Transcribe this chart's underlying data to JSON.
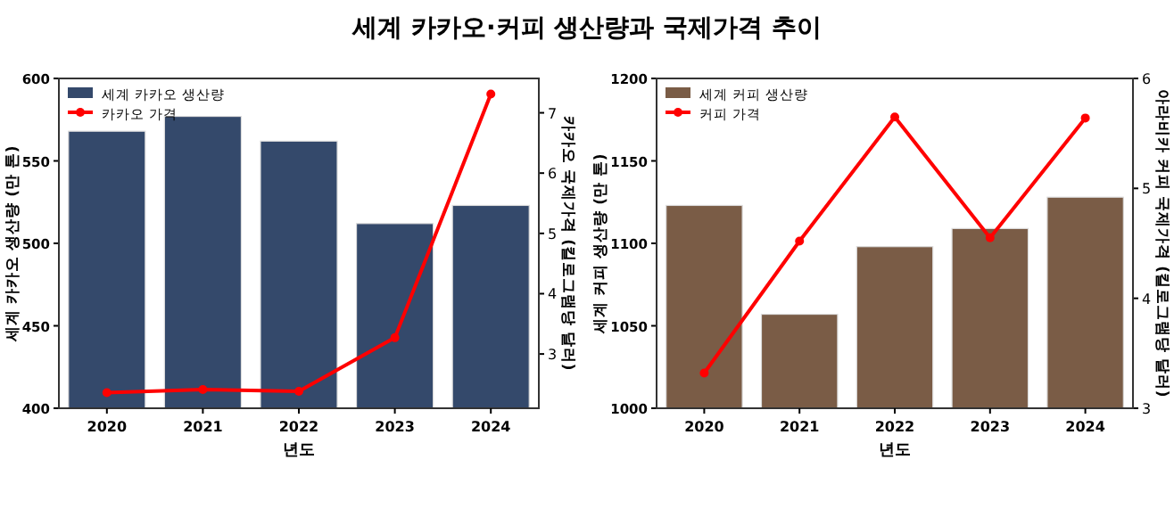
{
  "chart_data": [
    {
      "type": "bar",
      "title": "세계 카카오·커피 생산량과 국제가격 추이",
      "categories": [
        "2020",
        "2021",
        "2022",
        "2023",
        "2024"
      ],
      "xlabel": "년도",
      "ylabel": "세계 카카오 생산량 (만 톤)",
      "y2label": "카카오 국제가격 (킬로그램당 달러)",
      "ylim": [
        400,
        600
      ],
      "yticks": [
        400,
        450,
        500,
        550,
        600
      ],
      "y2lim": [
        2.1,
        7.57
      ],
      "y2ticks": [
        3,
        4,
        5,
        6,
        7
      ],
      "legend": "top left",
      "marker": "circle",
      "series": [
        {
          "name": "세계 카카오 생산량",
          "color": "#34496b",
          "values": [
            568,
            577,
            562,
            512,
            523
          ]
        },
        {
          "name": "카카오 가격",
          "type": "line",
          "axis": "y2",
          "color": "#ff0000",
          "values": [
            2.36,
            2.41,
            2.38,
            3.27,
            7.31
          ]
        }
      ]
    },
    {
      "type": "bar",
      "categories": [
        "2020",
        "2021",
        "2022",
        "2023",
        "2024"
      ],
      "xlabel": "년도",
      "ylabel": "세계 커피 생산량 (만 톤)",
      "y2label": "아라비카 커피 국제가격 (킬로그램당 달러)",
      "ylim": [
        1000,
        1200
      ],
      "yticks": [
        1000,
        1050,
        1100,
        1150,
        1200
      ],
      "y2lim": [
        3,
        6
      ],
      "y2ticks": [
        3,
        4,
        5,
        6
      ],
      "legend": "top left",
      "marker": "circle",
      "series": [
        {
          "name": "세계 커피 생산량",
          "color": "#7a5c46",
          "values": [
            1123,
            1057,
            1098,
            1109,
            1128
          ]
        },
        {
          "name": "커피 가격",
          "type": "line",
          "axis": "y2",
          "color": "#ff0000",
          "values": [
            3.32,
            4.52,
            5.65,
            4.55,
            5.64
          ]
        }
      ]
    }
  ]
}
